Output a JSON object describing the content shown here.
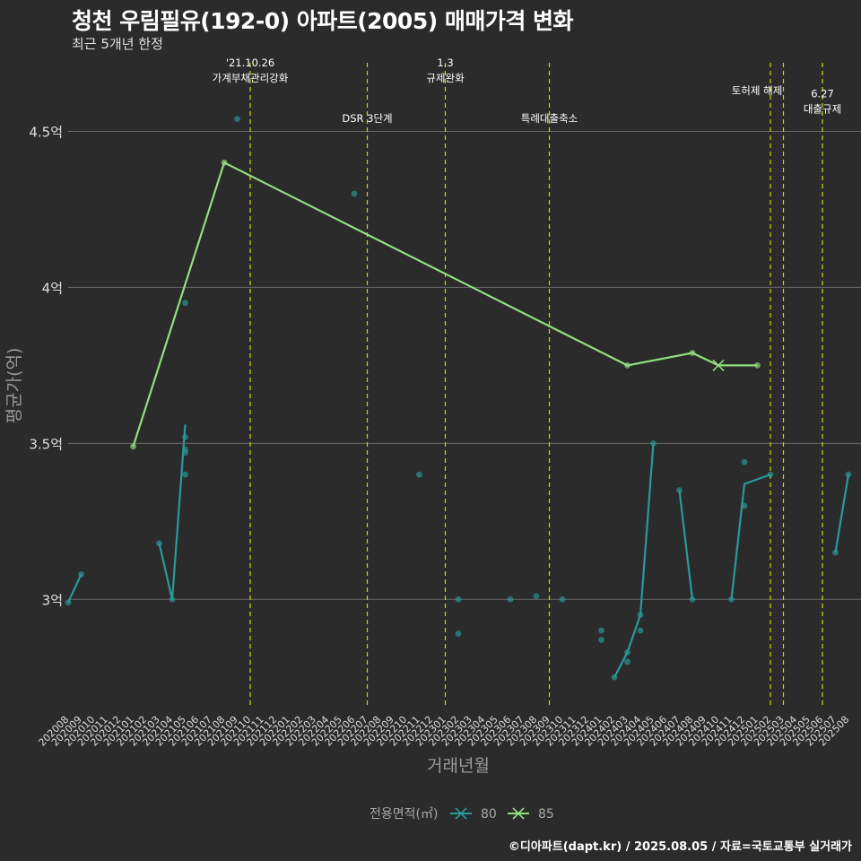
{
  "page": {
    "title": "청천 우림필유(192-0) 아파트(2005) 매매가격 변화",
    "subtitle": "최근 5개년 한정",
    "caption": "©디아파트(dapt.kr) / 2025.08.05 / 자료=국토교통부 실거래가"
  },
  "colors": {
    "background": "#2b2b2b",
    "grid": "#6b6b6b",
    "event_line": "#d4d400",
    "series_80": "#2a9a9a",
    "series_85": "#90e07e"
  },
  "chart_data": {
    "type": "line",
    "xlabel": "거래년월",
    "ylabel": "평균가(억)",
    "x_ticks": [
      "202008",
      "202009",
      "202010",
      "202011",
      "202012",
      "202101",
      "202102",
      "202103",
      "202104",
      "202105",
      "202106",
      "202107",
      "202108",
      "202109",
      "202110",
      "202111",
      "202112",
      "202201",
      "202202",
      "202203",
      "202204",
      "202205",
      "202206",
      "202207",
      "202208",
      "202209",
      "202210",
      "202211",
      "202212",
      "202301",
      "202302",
      "202303",
      "202304",
      "202305",
      "202306",
      "202307",
      "202308",
      "202309",
      "202310",
      "202311",
      "202312",
      "202401",
      "202402",
      "202403",
      "202404",
      "202405",
      "202406",
      "202407",
      "202408",
      "202409",
      "202410",
      "202411",
      "202412",
      "202501",
      "202502",
      "202503",
      "202504",
      "202505",
      "202506",
      "202507",
      "202508"
    ],
    "y_ticks": [
      {
        "value": 3.0,
        "label": "3억"
      },
      {
        "value": 3.5,
        "label": "3.5억"
      },
      {
        "value": 4.0,
        "label": "4억"
      },
      {
        "value": 4.5,
        "label": "4.5억"
      }
    ],
    "ylim": [
      2.65,
      4.72
    ],
    "legend": {
      "title": "전용면적(㎡)",
      "position": "bottom"
    },
    "events": [
      {
        "month": "202110",
        "label_lines": [
          "'21.10.26",
          "가계부채관리강화"
        ],
        "label_level": 4.66
      },
      {
        "month": "202207",
        "label_lines": [
          "DSR 3단계"
        ],
        "label_level": 4.53
      },
      {
        "month": "202301",
        "label_lines": [
          "1.3",
          "규제완화"
        ],
        "label_level": 4.66
      },
      {
        "month": "202309",
        "label_lines": [
          "특례대출축소"
        ],
        "label_level": 4.53
      },
      {
        "month": "202502",
        "label_lines": [
          "토허제 해제"
        ],
        "label_level": 4.62,
        "offset": -1
      },
      {
        "month": "202503",
        "label_lines": [],
        "label_level": 0
      },
      {
        "month": "202506",
        "label_lines": [
          "6.27",
          "대출규제"
        ],
        "label_level": 4.56
      }
    ],
    "series": [
      {
        "name": "80",
        "color": "#2a9a9a",
        "marker": "x",
        "line": [
          [
            "202008",
            2.99
          ],
          [
            "202009",
            3.08
          ],
          null,
          [
            "202103",
            3.18
          ],
          [
            "202104",
            3.0
          ],
          [
            "202105",
            3.56
          ],
          null,
          [
            "202402",
            2.75
          ],
          [
            "202403",
            2.83
          ],
          [
            "202404",
            2.95
          ],
          [
            "202405",
            3.5
          ],
          null,
          [
            "202407",
            3.35
          ],
          [
            "202408",
            3.0
          ],
          null,
          [
            "202411",
            3.0
          ],
          [
            "202412",
            3.37
          ],
          [
            "202502",
            3.4
          ],
          null,
          [
            "202507",
            3.15
          ],
          [
            "202508",
            3.4
          ]
        ],
        "points": [
          [
            "202008",
            2.99
          ],
          [
            "202009",
            3.08
          ],
          [
            "202103",
            3.18
          ],
          [
            "202104",
            3.0
          ],
          [
            "202105",
            3.4
          ],
          [
            "202105",
            3.47
          ],
          [
            "202105",
            3.48
          ],
          [
            "202105",
            3.52
          ],
          [
            "202105",
            3.95
          ],
          [
            "202109",
            4.54
          ],
          [
            "202206",
            4.3
          ],
          [
            "202211",
            3.4
          ],
          [
            "202302",
            3.0
          ],
          [
            "202302",
            2.89
          ],
          [
            "202306",
            3.0
          ],
          [
            "202308",
            3.01
          ],
          [
            "202310",
            3.0
          ],
          [
            "202401",
            2.9
          ],
          [
            "202401",
            2.87
          ],
          [
            "202402",
            2.75
          ],
          [
            "202403",
            2.83
          ],
          [
            "202403",
            2.8
          ],
          [
            "202404",
            2.9
          ],
          [
            "202404",
            2.95
          ],
          [
            "202405",
            3.5
          ],
          [
            "202407",
            3.35
          ],
          [
            "202408",
            3.0
          ],
          [
            "202411",
            3.0
          ],
          [
            "202412",
            3.44
          ],
          [
            "202412",
            3.3
          ],
          [
            "202502",
            3.4
          ],
          [
            "202507",
            3.15
          ],
          [
            "202508",
            3.4
          ]
        ]
      },
      {
        "name": "85",
        "color": "#90e07e",
        "marker": "x",
        "line": [
          [
            "202101",
            3.49
          ],
          [
            "202108",
            4.4
          ],
          [
            "202403",
            3.75
          ],
          [
            "202408",
            3.79
          ],
          [
            "202410",
            3.75
          ],
          [
            "202501",
            3.75
          ]
        ],
        "points": [
          [
            "202101",
            3.49
          ],
          [
            "202108",
            4.4
          ],
          [
            "202403",
            3.75
          ],
          [
            "202408",
            3.79
          ],
          [
            "202501",
            3.75
          ]
        ],
        "cross_points": [
          [
            "202410",
            3.75
          ]
        ]
      }
    ]
  }
}
